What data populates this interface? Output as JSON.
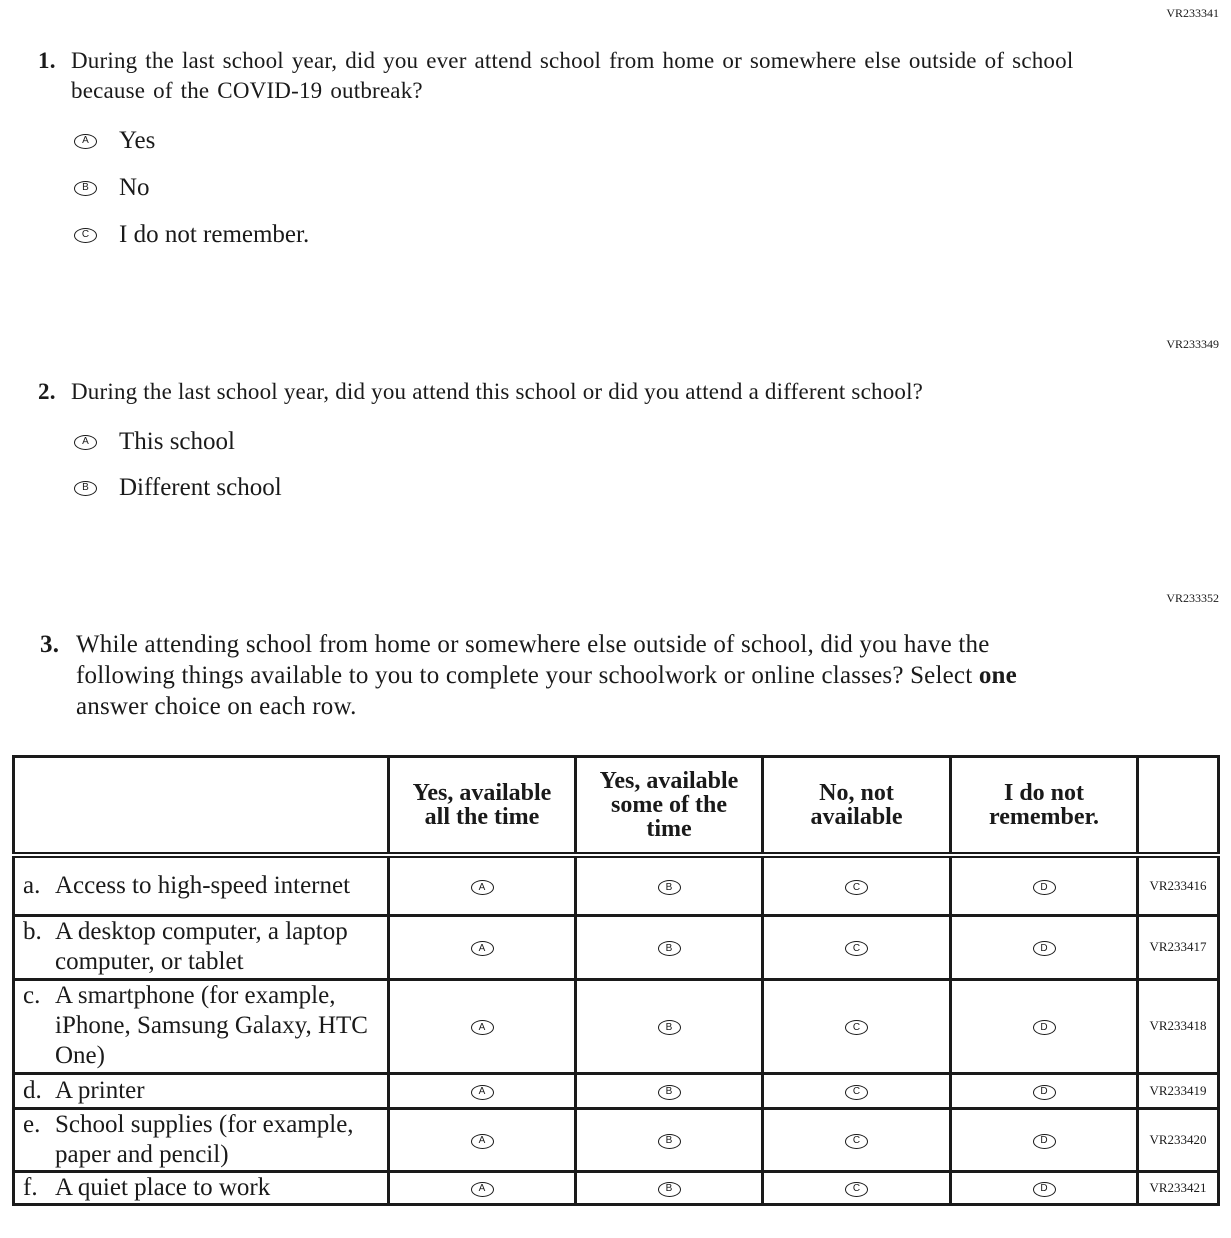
{
  "questions": [
    {
      "code": "VR233341",
      "number": "1.",
      "text": "During the last school year, did you ever attend school from home or somewhere else outside of school because of the COVID-19 outbreak?",
      "options": [
        {
          "letter": "A",
          "label": "Yes"
        },
        {
          "letter": "B",
          "label": "No"
        },
        {
          "letter": "C",
          "label": "I do not remember."
        }
      ]
    },
    {
      "code": "VR233349",
      "number": "2.",
      "text": "During the last school year, did you attend this school or did you attend a different school?",
      "options": [
        {
          "letter": "A",
          "label": "This school"
        },
        {
          "letter": "B",
          "label": "Different school"
        }
      ]
    },
    {
      "code": "VR233352",
      "number": "3.",
      "text_before": "While attending school from home or somewhere else outside of school, did you have the following things available to you to complete your schoolwork or online classes? Select ",
      "text_bold": "one",
      "text_after": " answer choice on each row."
    }
  ],
  "table": {
    "columns": [
      "Yes, available all the time",
      "Yes, available some of the time",
      "No, not available",
      "I do not remember."
    ],
    "letters": [
      "A",
      "B",
      "C",
      "D"
    ],
    "rows": [
      {
        "letter": "a.",
        "label": "Access to high-speed internet",
        "code": "VR233416"
      },
      {
        "letter": "b.",
        "label": "A desktop computer, a laptop computer, or tablet",
        "code": "VR233417"
      },
      {
        "letter": "c.",
        "label": "A smartphone (for example, iPhone, Samsung Galaxy, HTC One)",
        "code": "VR233418"
      },
      {
        "letter": "d.",
        "label": "A printer",
        "code": "VR233419"
      },
      {
        "letter": "e.",
        "label": "School supplies (for example, paper and pencil)",
        "code": "VR233420"
      },
      {
        "letter": "f.",
        "label": "A quiet place to work",
        "code": "VR233421"
      }
    ]
  }
}
